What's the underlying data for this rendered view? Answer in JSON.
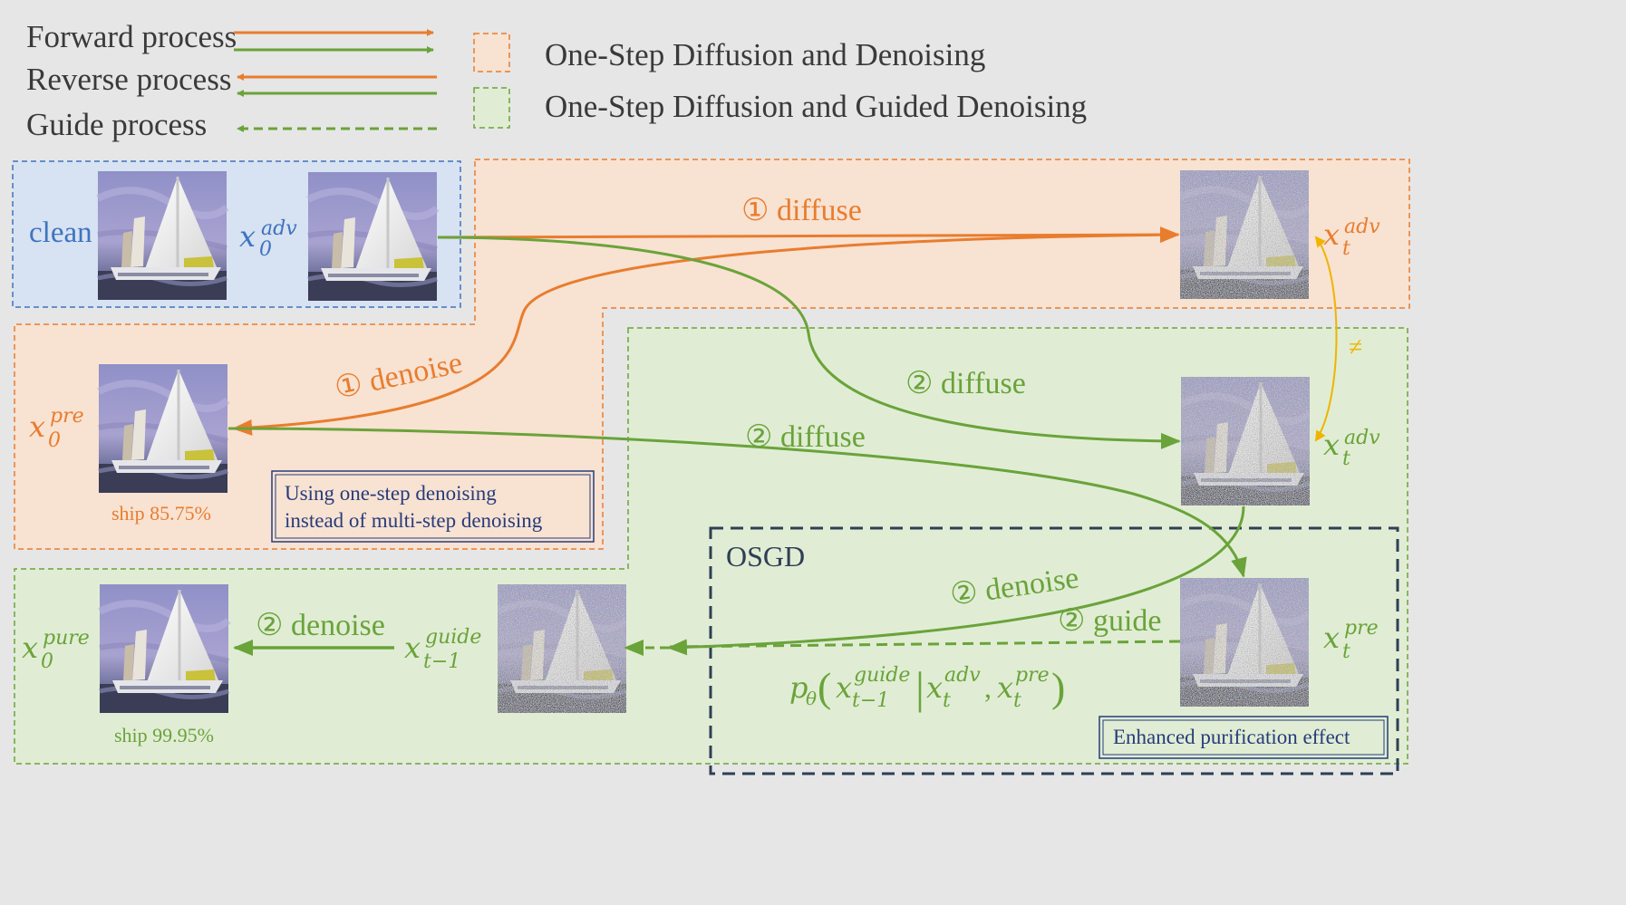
{
  "legend": {
    "forward": "Forward process",
    "reverse": "Reverse process",
    "guide": "Guide process",
    "orange_box": "One-Step Diffusion and Denoising",
    "green_box": "One-Step Diffusion and Guided Denoising"
  },
  "labels": {
    "clean": "clean",
    "x0adv": {
      "base": "x",
      "sub": "0",
      "sup": "adv"
    },
    "xt_adv_top": {
      "base": "x",
      "sub": "t",
      "sup": "adv"
    },
    "xt_adv_mid": {
      "base": "x",
      "sub": "t",
      "sup": "adv"
    },
    "x0pre": {
      "base": "x",
      "sub": "0",
      "sup": "pre"
    },
    "xt_pre": {
      "base": "x",
      "sub": "t",
      "sup": "pre"
    },
    "x0pure": {
      "base": "x",
      "sub": "0",
      "sup": "pure"
    },
    "xguide": {
      "base": "x",
      "sub": "t−1",
      "sup": "guide"
    },
    "neq": "≠"
  },
  "arrows": {
    "diffuse1": "① diffuse",
    "denoise1": "① denoise",
    "diffuse2a": "② diffuse",
    "diffuse2b": "② diffuse",
    "denoise2_osgd": "② denoise",
    "guide2": "② guide",
    "denoise2_final": "② denoise"
  },
  "formula": {
    "p": "p",
    "theta": "θ",
    "open": "(",
    "x1": "x",
    "x1_sup": "guide",
    "x1_sub": "t−1",
    "bar": "|",
    "x2": "x",
    "x2_sup": "adv",
    "x2_sub": "t",
    "comma": ",",
    "x3": "x",
    "x3_sup": "pre",
    "x3_sub": "t",
    "close": ")"
  },
  "captions": {
    "ship1": "ship 85.75%",
    "ship2": "ship 99.95%"
  },
  "notes": {
    "note1_line1": "Using one-step denoising",
    "note1_line2": "instead of multi-step denoising",
    "osgd": "OSGD",
    "enhanced": "Enhanced purification effect"
  },
  "colors": {
    "orange": "#e87d2e",
    "green": "#6aa33a",
    "blue": "#3e73c0",
    "navy": "#263c7a",
    "gold": "#f0b400",
    "orange_fill": "#f8e2d2",
    "green_fill": "#e0edd4",
    "blue_fill": "#d7e2f2"
  }
}
